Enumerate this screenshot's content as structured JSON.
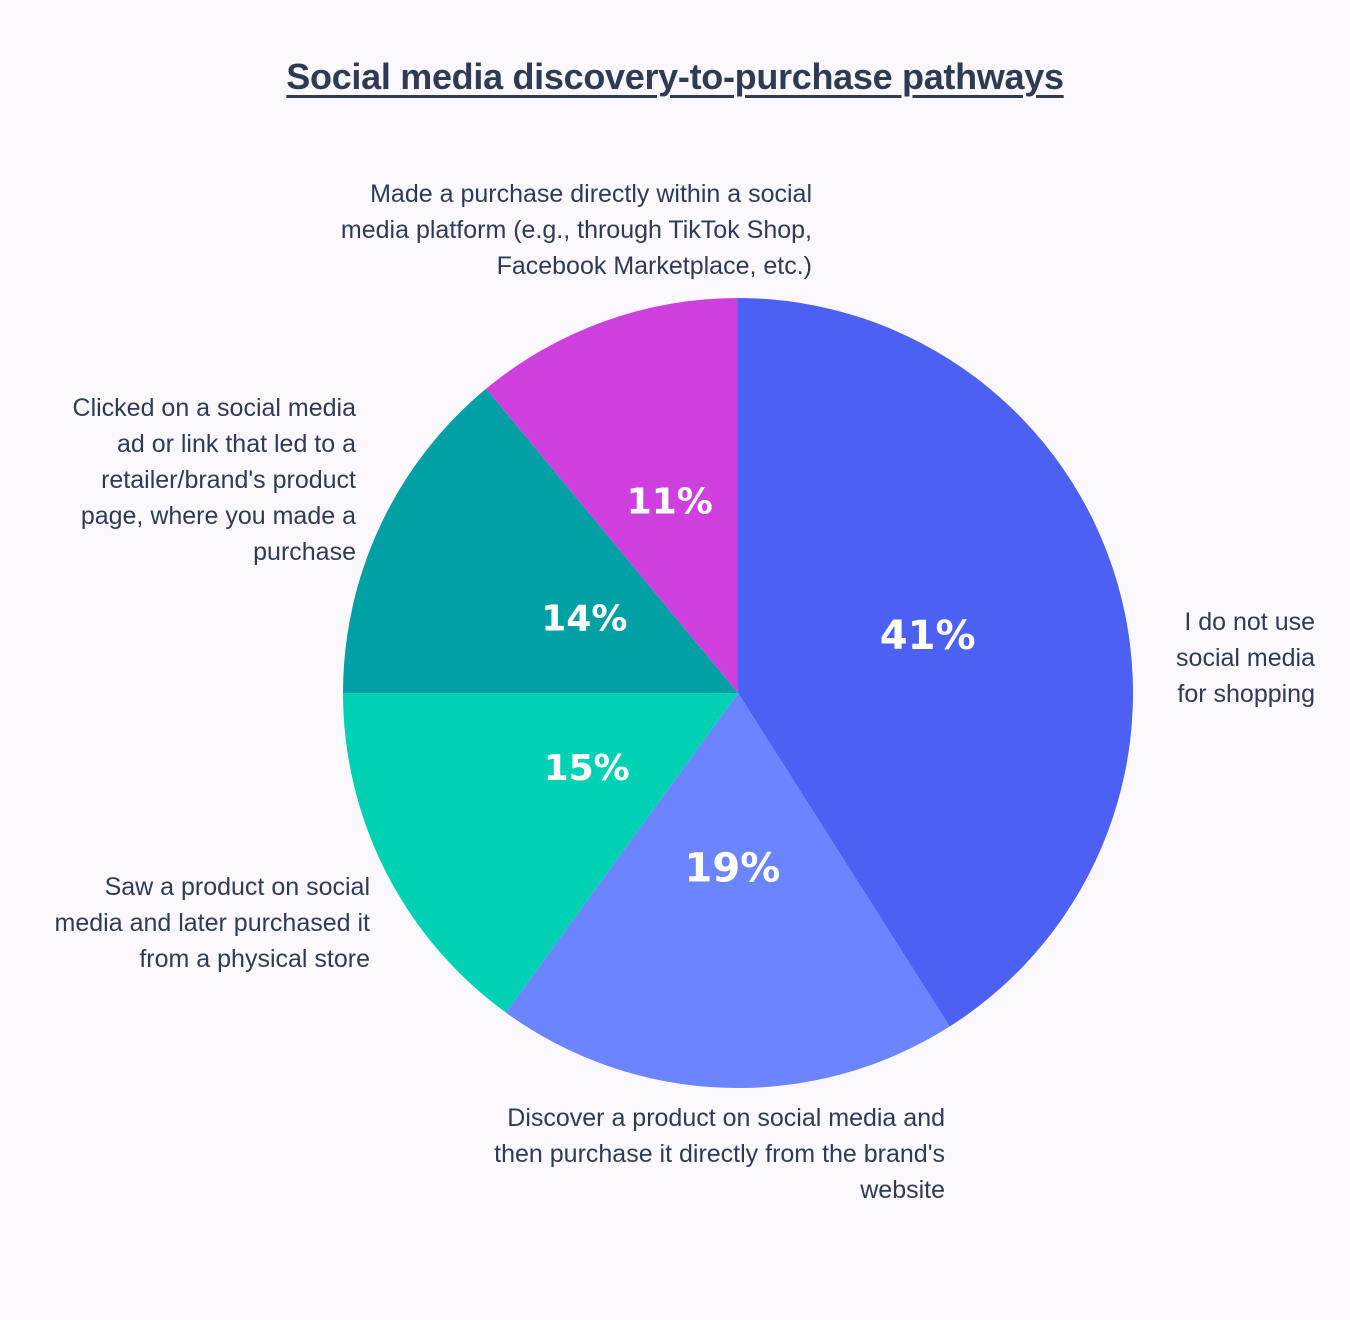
{
  "chart_data": {
    "type": "pie",
    "title": "Social media discovery-to-purchase pathways",
    "start_angle_deg": 0,
    "direction": "clockwise",
    "slices": [
      {
        "label": "I do not use social media for shopping",
        "value": 41,
        "display": "41%",
        "color": "#4c61f4"
      },
      {
        "label": "Discover a product on social media and then purchase it directly from the brand's website",
        "value": 19,
        "display": "19%",
        "color": "#6b84ff"
      },
      {
        "label": "Saw a product on social media and later purchased it from a physical store",
        "value": 15,
        "display": "15%",
        "color": "#00d0b4"
      },
      {
        "label": "Clicked on a social media ad or link that led to a retailer/brand's product page, where you made a purchase",
        "value": 14,
        "display": "14%",
        "color": "#00a0a4"
      },
      {
        "label": "Made a purchase directly within a social media platform (e.g., through TikTok Shop, Facebook Marketplace, etc.)",
        "value": 11,
        "display": "11%",
        "color": "#cd40de"
      }
    ]
  }
}
